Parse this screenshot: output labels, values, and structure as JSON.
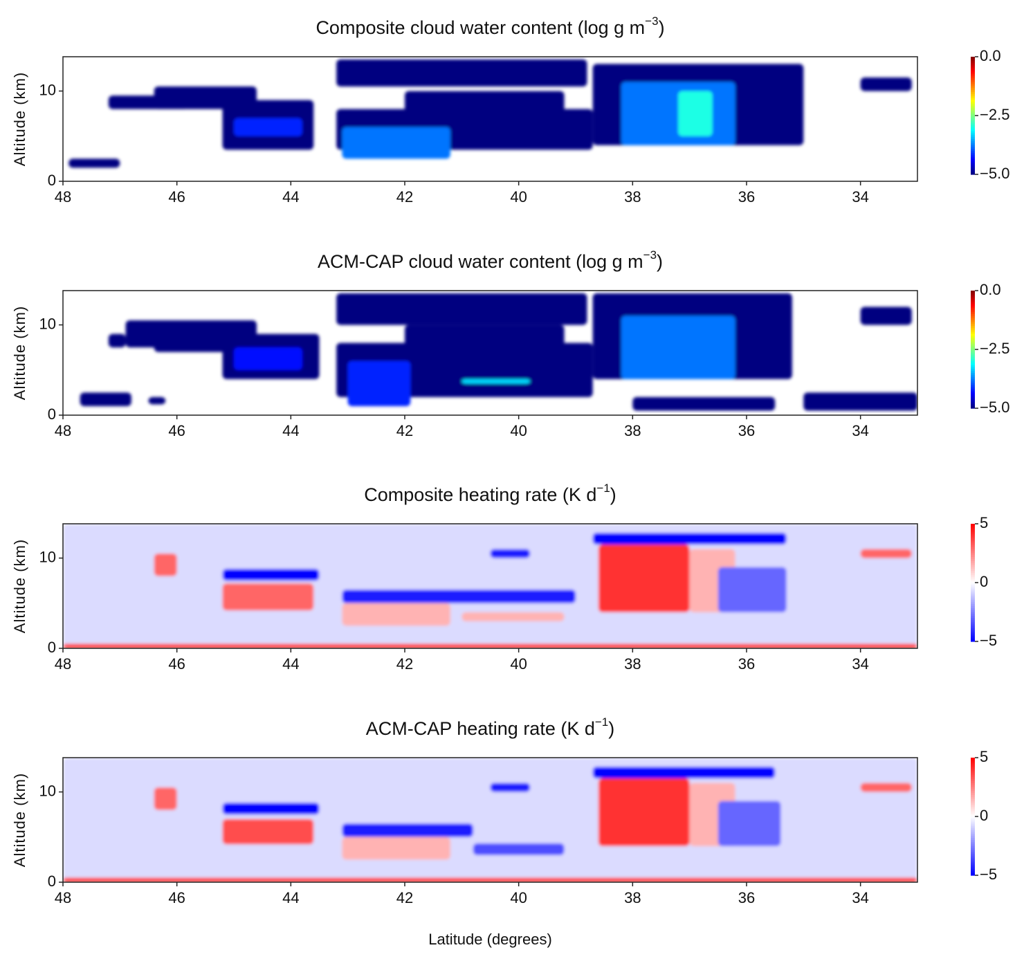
{
  "chart_data": [
    {
      "type": "heatmap",
      "title": {
        "text": "Composite cloud water content (log g m",
        "sup": "−3",
        "tail": ")"
      },
      "ylabel": "Altitude (km)",
      "xlim": [
        48,
        33
      ],
      "ylim": [
        0,
        13.8
      ],
      "xticks": [
        48,
        46,
        44,
        42,
        40,
        38,
        36,
        34
      ],
      "yticks": [
        0,
        10
      ],
      "colormap": "jet",
      "clim": [
        -5,
        0
      ],
      "cticks": [
        {
          "value": 0,
          "label": "0.0"
        },
        {
          "value": -2.5,
          "label": "−2.5"
        },
        {
          "value": -5,
          "label": "−5.0"
        }
      ],
      "cells": [
        [
          47.9,
          47,
          1.5,
          2.5,
          -5
        ],
        [
          47.2,
          45.8,
          8,
          9.5,
          -5
        ],
        [
          46.4,
          44.6,
          8,
          10.5,
          -5
        ],
        [
          45.2,
          43.6,
          3.5,
          9,
          -5
        ],
        [
          45,
          43.8,
          5,
          7,
          -4.2
        ],
        [
          43.2,
          38.7,
          3.5,
          8,
          -5
        ],
        [
          43.1,
          41.2,
          2.5,
          6,
          -3.8
        ],
        [
          43.2,
          38.8,
          10.5,
          13.5,
          -5
        ],
        [
          42,
          39.2,
          7,
          10,
          -5
        ],
        [
          38.7,
          35,
          4,
          13,
          -5
        ],
        [
          38.2,
          36.2,
          4,
          11,
          -3.8
        ],
        [
          37.2,
          36.6,
          5,
          10,
          -3
        ],
        [
          34,
          33.1,
          10,
          11.5,
          -5
        ]
      ]
    },
    {
      "type": "heatmap",
      "title": {
        "text": "ACM-CAP cloud water content (log g m",
        "sup": "−3",
        "tail": ")"
      },
      "ylabel": "Altitude (km)",
      "xlim": [
        48,
        33
      ],
      "ylim": [
        0,
        13.8
      ],
      "xticks": [
        48,
        46,
        44,
        42,
        40,
        38,
        36,
        34
      ],
      "yticks": [
        0,
        10
      ],
      "colormap": "jet",
      "clim": [
        -5,
        0
      ],
      "cticks": [
        {
          "value": 0,
          "label": "0.0"
        },
        {
          "value": -2.5,
          "label": "−2.5"
        },
        {
          "value": -5,
          "label": "−5.0"
        }
      ],
      "cells": [
        [
          47.7,
          46.8,
          1,
          2.5,
          -5
        ],
        [
          46.5,
          46.2,
          1.2,
          2,
          -5
        ],
        [
          47.2,
          46.9,
          7.5,
          9,
          -5
        ],
        [
          46.9,
          45.8,
          7.5,
          10.5,
          -5
        ],
        [
          46.4,
          44.6,
          7,
          10.5,
          -5
        ],
        [
          45.2,
          43.5,
          4,
          9,
          -5
        ],
        [
          45,
          43.8,
          5,
          7.5,
          -4.3
        ],
        [
          43.2,
          38.7,
          2,
          8,
          -5
        ],
        [
          43,
          41.9,
          1,
          6,
          -4.2
        ],
        [
          41,
          39.8,
          3.5,
          4,
          -3.3
        ],
        [
          43.2,
          38.8,
          10,
          13.5,
          -5
        ],
        [
          42,
          39.2,
          7,
          10,
          -5
        ],
        [
          38.7,
          35.2,
          4,
          13.5,
          -5
        ],
        [
          38.2,
          36.2,
          4,
          11,
          -3.8
        ],
        [
          38,
          35.5,
          0.5,
          2,
          -5
        ],
        [
          35,
          33,
          0.5,
          2.5,
          -5
        ],
        [
          34,
          33.1,
          10,
          12,
          -5
        ]
      ]
    },
    {
      "type": "heatmap",
      "title": {
        "text": "Composite heating rate (K d",
        "sup": "−1",
        "tail": ")"
      },
      "ylabel": "Altitude (km)",
      "xlim": [
        48,
        33
      ],
      "ylim": [
        0,
        13.8
      ],
      "xticks": [
        48,
        46,
        44,
        42,
        40,
        38,
        36,
        34
      ],
      "yticks": [
        0,
        10
      ],
      "colormap": "bwr",
      "clim": [
        -5,
        5
      ],
      "cticks": [
        {
          "value": 5,
          "label": "5"
        },
        {
          "value": 0,
          "label": "0"
        },
        {
          "value": -5,
          "label": "−5"
        }
      ],
      "cells": [
        [
          48,
          33,
          0,
          13.8,
          -0.7
        ],
        [
          48,
          33,
          0,
          0.5,
          4
        ],
        [
          46.4,
          46,
          8,
          10.5,
          3
        ],
        [
          45.2,
          43.5,
          7.5,
          8.8,
          -5
        ],
        [
          45.2,
          43.6,
          4.2,
          7.2,
          3
        ],
        [
          43.1,
          39,
          5,
          6.5,
          -4.5
        ],
        [
          43.1,
          41.2,
          2.5,
          5,
          1.5
        ],
        [
          41,
          39.2,
          3,
          4,
          1.5
        ],
        [
          40.5,
          39.8,
          10,
          11,
          -4.5
        ],
        [
          38.7,
          35.3,
          11.5,
          12.8,
          -5
        ],
        [
          38.6,
          37,
          4,
          11.5,
          4
        ],
        [
          37,
          36.2,
          4,
          11,
          1.5
        ],
        [
          36.5,
          35.3,
          4,
          9,
          -3
        ],
        [
          34,
          33.1,
          10,
          11,
          3
        ]
      ]
    },
    {
      "type": "heatmap",
      "title": {
        "text": "ACM-CAP heating rate (K d",
        "sup": "−1",
        "tail": ")"
      },
      "ylabel": "Altitude (km)",
      "xlabel": "Latitude (degrees)",
      "xlim": [
        48,
        33
      ],
      "ylim": [
        0,
        13.8
      ],
      "xticks": [
        48,
        46,
        44,
        42,
        40,
        38,
        36,
        34
      ],
      "yticks": [
        0,
        10
      ],
      "colormap": "bwr",
      "clim": [
        -5,
        5
      ],
      "cticks": [
        {
          "value": 5,
          "label": "5"
        },
        {
          "value": 0,
          "label": "0"
        },
        {
          "value": -5,
          "label": "−5"
        }
      ],
      "cells": [
        [
          48,
          33,
          0,
          13.8,
          -0.7
        ],
        [
          48,
          33,
          0,
          0.5,
          4
        ],
        [
          46.4,
          46,
          8,
          10.5,
          3
        ],
        [
          45.2,
          43.5,
          7.5,
          8.8,
          -5
        ],
        [
          45.2,
          43.6,
          4.2,
          7,
          3.5
        ],
        [
          43.1,
          40.8,
          5,
          6.5,
          -4.5
        ],
        [
          43.1,
          41.2,
          2.5,
          5,
          1.5
        ],
        [
          40.8,
          39.2,
          3,
          4.3,
          -3.5
        ],
        [
          40.5,
          39.8,
          10,
          11,
          -4.5
        ],
        [
          38.7,
          35.5,
          11.5,
          12.8,
          -5
        ],
        [
          38.6,
          37,
          4,
          11.5,
          4
        ],
        [
          37,
          36.2,
          4,
          11,
          1.5
        ],
        [
          36.5,
          35.4,
          4,
          9,
          -3
        ],
        [
          34,
          33.1,
          10,
          11,
          3
        ]
      ]
    }
  ]
}
